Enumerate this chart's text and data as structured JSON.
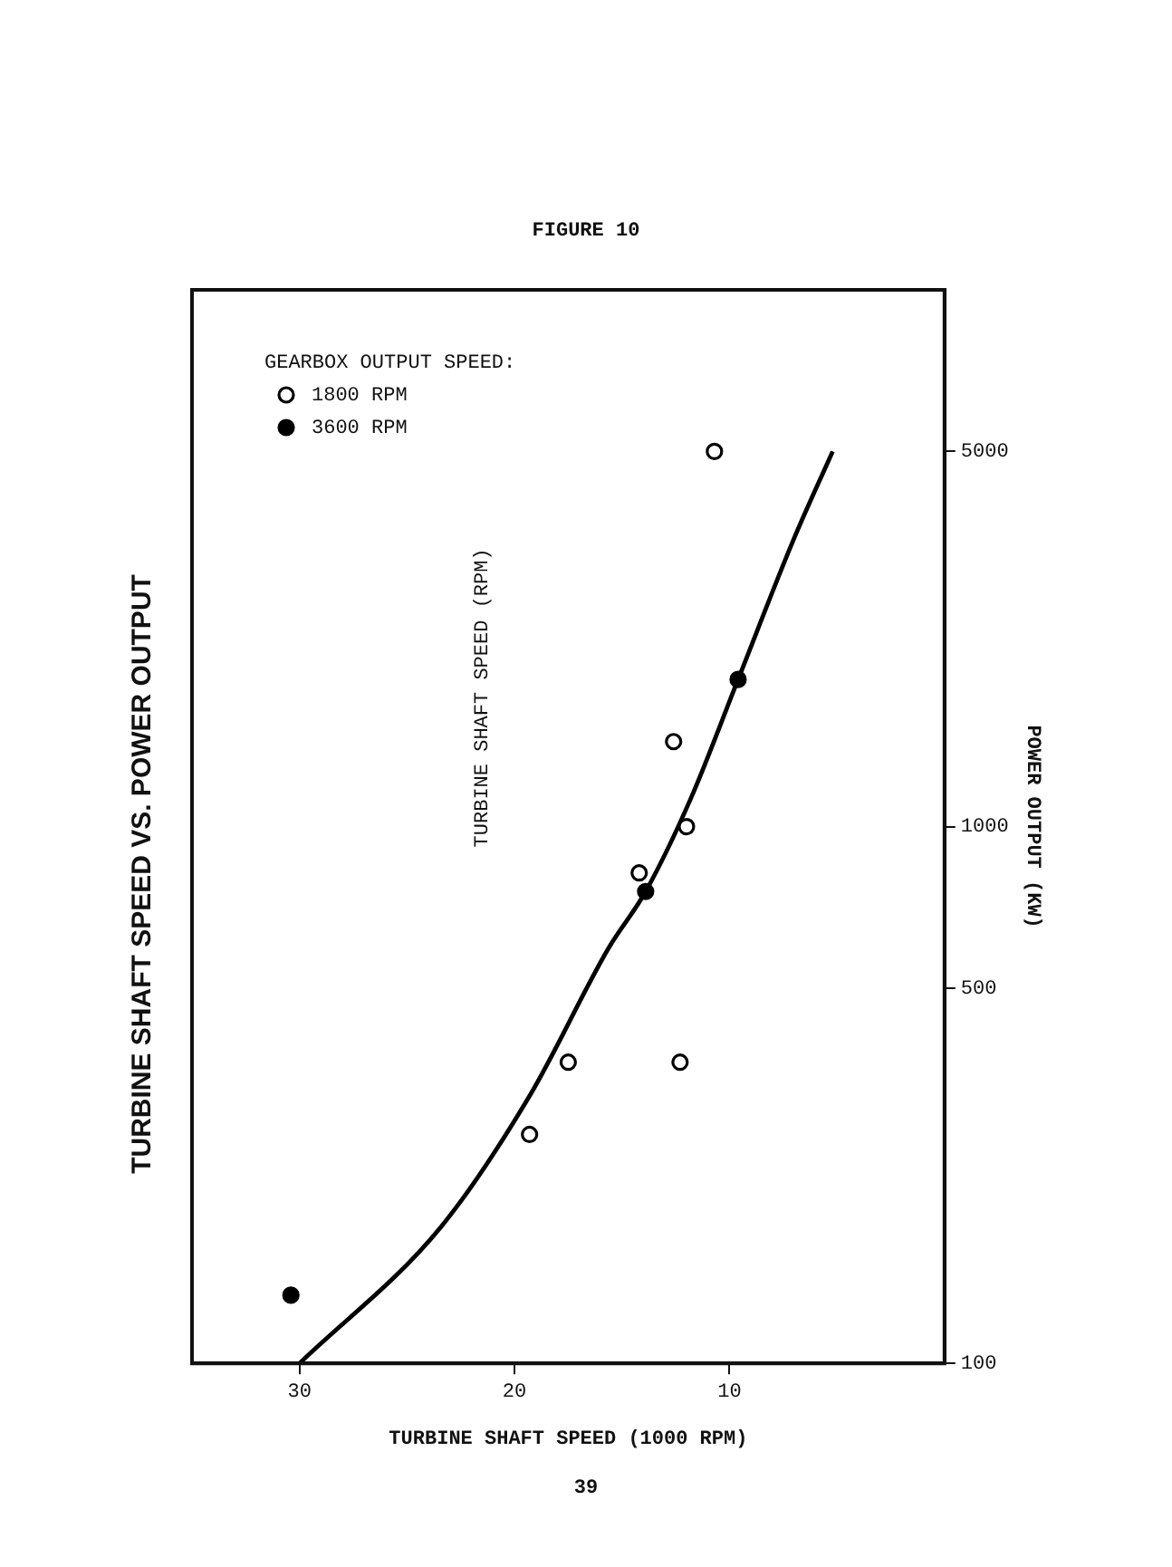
{
  "chart_data": {
    "type": "scatter",
    "title": "TURBINE SHAFT SPEED VS. POWER OUTPUT",
    "xlabel": "TURBINE SHAFT SPEED (1000 RPM)",
    "ylabel": "POWER OUTPUT (KW)",
    "legend_title": "GEARBOX OUTPUT SPEED:",
    "annotations": [
      "TURBINE SHAFT SPEED (RPM)",
      "FIGURE 10",
      "39"
    ],
    "log": "y",
    "xlim": [
      35,
      0
    ],
    "xticks": [
      30,
      20,
      10
    ],
    "ylim": [
      100,
      10000
    ],
    "yticks": [
      100,
      500,
      1000,
      5000
    ],
    "grid": false,
    "legend": "top left",
    "marker": "circle",
    "series": [
      {
        "name": "1800 RPM",
        "color": "#000000",
        "x": [
          10.7,
          12.6,
          12.0,
          14.2,
          17.5,
          12.3,
          19.3
        ],
        "values": [
          5000,
          1440,
          1000,
          820,
          364,
          364,
          267
        ]
      },
      {
        "name": "3600 RPM",
        "color": "#000000",
        "x": [
          30.4,
          13.9,
          9.6
        ],
        "values": [
          134,
          757,
          1880
        ]
      },
      {
        "type": "line",
        "marker": "none",
        "line_style": "solid",
        "color": "#000000",
        "x": [
          30.0,
          23.4,
          19.3,
          15.6,
          13.9,
          11.8,
          9.6,
          7.0,
          5.2
        ],
        "values": [
          100,
          180,
          315,
          596,
          757,
          1128,
          1880,
          3440,
          5000
        ]
      }
    ]
  }
}
